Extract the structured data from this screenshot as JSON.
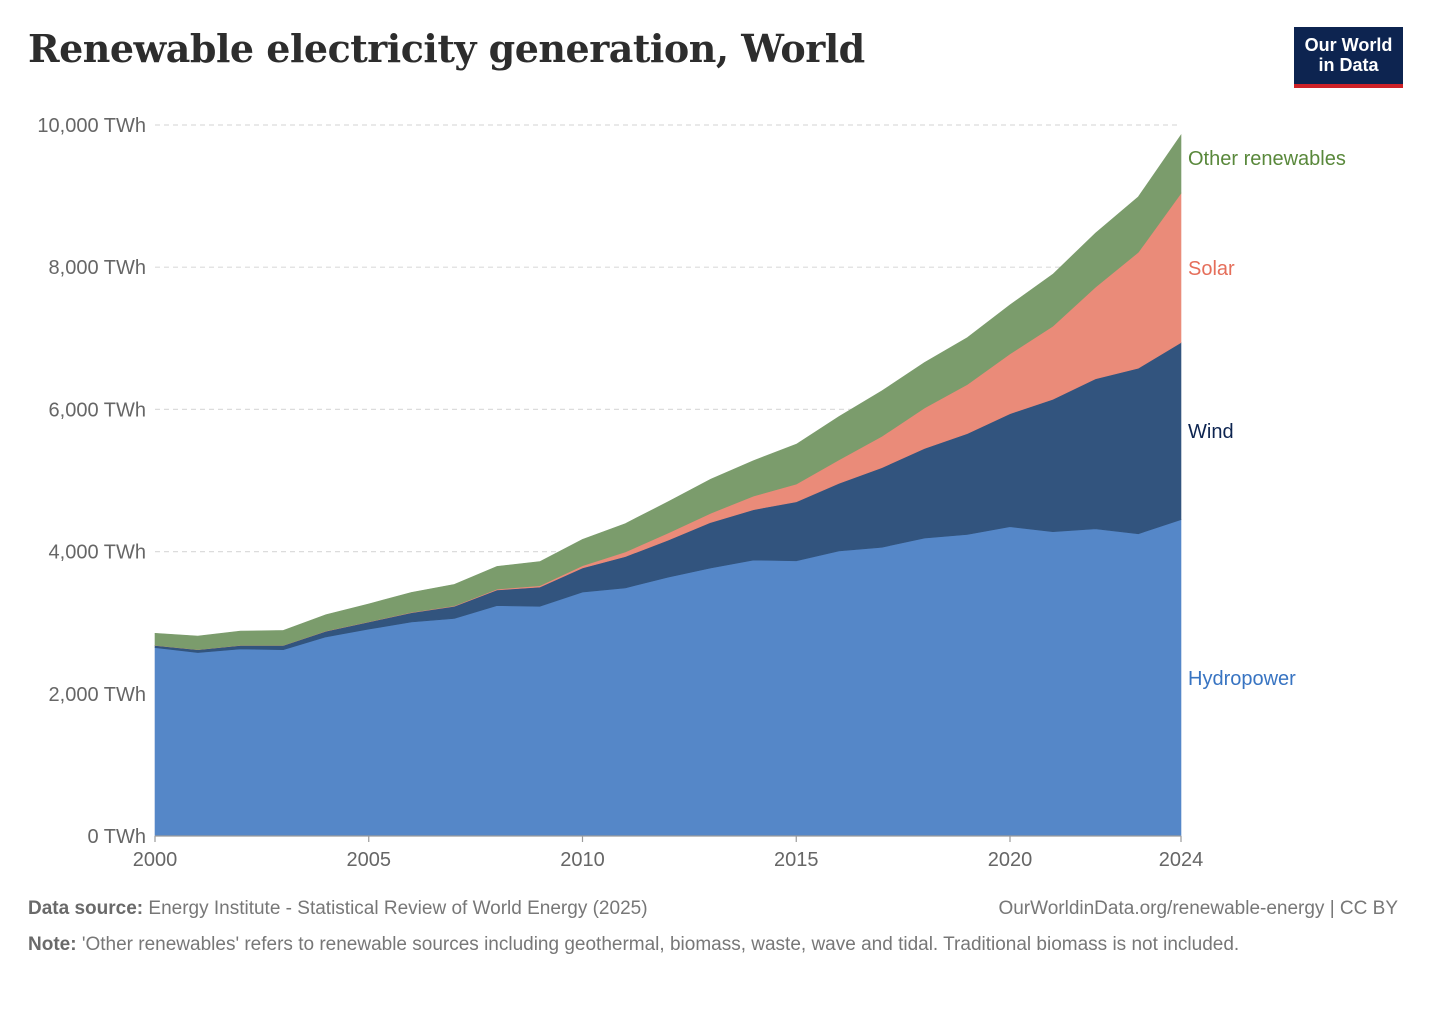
{
  "header": {
    "title": "Renewable electricity generation, World",
    "logo_line1": "Our World",
    "logo_line2": "in Data"
  },
  "footer": {
    "source_label": "Data source:",
    "source_text": "Energy Institute - Statistical Review of World Energy (2025)",
    "url_text": "OurWorldinData.org/renewable-energy | CC BY",
    "note_label": "Note:",
    "note_text": "'Other renewables' refers to renewable sources including geothermal, biomass, waste, wave and tidal. Traditional biomass is not included."
  },
  "chart_data": {
    "type": "area",
    "stacked": true,
    "title": "Renewable electricity generation, World",
    "unit": "TWh",
    "x": [
      2000,
      2001,
      2002,
      2003,
      2004,
      2005,
      2006,
      2007,
      2008,
      2009,
      2010,
      2011,
      2012,
      2013,
      2014,
      2015,
      2016,
      2017,
      2018,
      2019,
      2020,
      2021,
      2022,
      2023,
      2024
    ],
    "x_ticks": [
      2000,
      2005,
      2010,
      2015,
      2020,
      2024
    ],
    "y_ticks": [
      0,
      2000,
      4000,
      6000,
      8000,
      10000
    ],
    "y_tick_labels": [
      "0 TWh",
      "2,000 TWh",
      "4,000 TWh",
      "6,000 TWh",
      "8,000 TWh",
      "10,000 TWh"
    ],
    "ylim": [
      0,
      10000
    ],
    "grid": true,
    "legend_placement": "right, labels at series ends",
    "series": [
      {
        "name": "Hydropower",
        "color": "#5587c8",
        "label_color": "#3874c2",
        "values": [
          2650,
          2580,
          2630,
          2620,
          2800,
          2910,
          3010,
          3060,
          3240,
          3230,
          3430,
          3490,
          3640,
          3770,
          3880,
          3870,
          4010,
          4060,
          4190,
          4240,
          4350,
          4280,
          4320,
          4250,
          4450
        ]
      },
      {
        "name": "Wind",
        "color": "#32547e",
        "label_color": "#0d2450",
        "values": [
          30,
          40,
          50,
          60,
          80,
          100,
          130,
          170,
          220,
          270,
          340,
          440,
          520,
          640,
          710,
          830,
          950,
          1120,
          1260,
          1420,
          1590,
          1860,
          2110,
          2330,
          2490
        ]
      },
      {
        "name": "Solar",
        "color": "#ea8b79",
        "label_color": "#e56e5a",
        "values": [
          1,
          1,
          2,
          2,
          3,
          4,
          6,
          8,
          12,
          20,
          32,
          64,
          100,
          130,
          190,
          250,
          330,
          440,
          570,
          690,
          840,
          1030,
          1290,
          1630,
          2100
        ]
      },
      {
        "name": "Other renewables",
        "color": "#7b9c6c",
        "label_color": "#59883b",
        "values": [
          170,
          190,
          200,
          210,
          230,
          250,
          280,
          300,
          320,
          340,
          370,
          400,
          440,
          480,
          500,
          560,
          610,
          640,
          640,
          660,
          690,
          730,
          760,
          780,
          820
        ]
      }
    ]
  }
}
